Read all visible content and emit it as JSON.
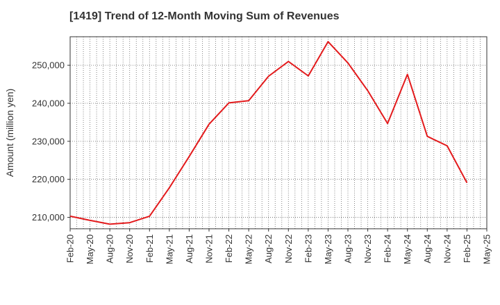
{
  "chart_data": {
    "type": "line",
    "title": "[1419]  Trend of 12-Month Moving Sum of Revenues",
    "xlabel": "",
    "ylabel": "Amount (million yen)",
    "x_ticks": [
      "Feb-20",
      "May-20",
      "Aug-20",
      "Nov-20",
      "Feb-21",
      "May-21",
      "Aug-21",
      "Nov-21",
      "Feb-22",
      "May-22",
      "Aug-22",
      "Nov-22",
      "Feb-23",
      "May-23",
      "Aug-23",
      "Nov-23",
      "Feb-24",
      "May-24",
      "Aug-24",
      "Nov-24",
      "Feb-25",
      "May-25"
    ],
    "y_ticks": [
      "210,000",
      "220,000",
      "230,000",
      "240,000",
      "250,000"
    ],
    "y_tick_values": [
      210000,
      220000,
      230000,
      240000,
      250000
    ],
    "ylim": [
      207000,
      257500
    ],
    "grid": true,
    "series": [
      {
        "color": "#e31a1c",
        "x": [
          "Feb-20",
          "May-20",
          "Aug-20",
          "Nov-20",
          "Feb-21",
          "May-21",
          "Aug-21",
          "Nov-21",
          "Feb-22",
          "May-22",
          "Aug-22",
          "Nov-22",
          "Feb-23",
          "May-23",
          "Aug-23",
          "Nov-23",
          "Feb-24",
          "May-24",
          "Aug-24",
          "Nov-24",
          "Feb-25"
        ],
        "values": [
          210300,
          209200,
          208200,
          208600,
          210300,
          217800,
          226000,
          234500,
          240100,
          240700,
          247100,
          251000,
          247200,
          256200,
          250600,
          243300,
          234700,
          247600,
          231300,
          228800,
          219100
        ]
      }
    ]
  }
}
